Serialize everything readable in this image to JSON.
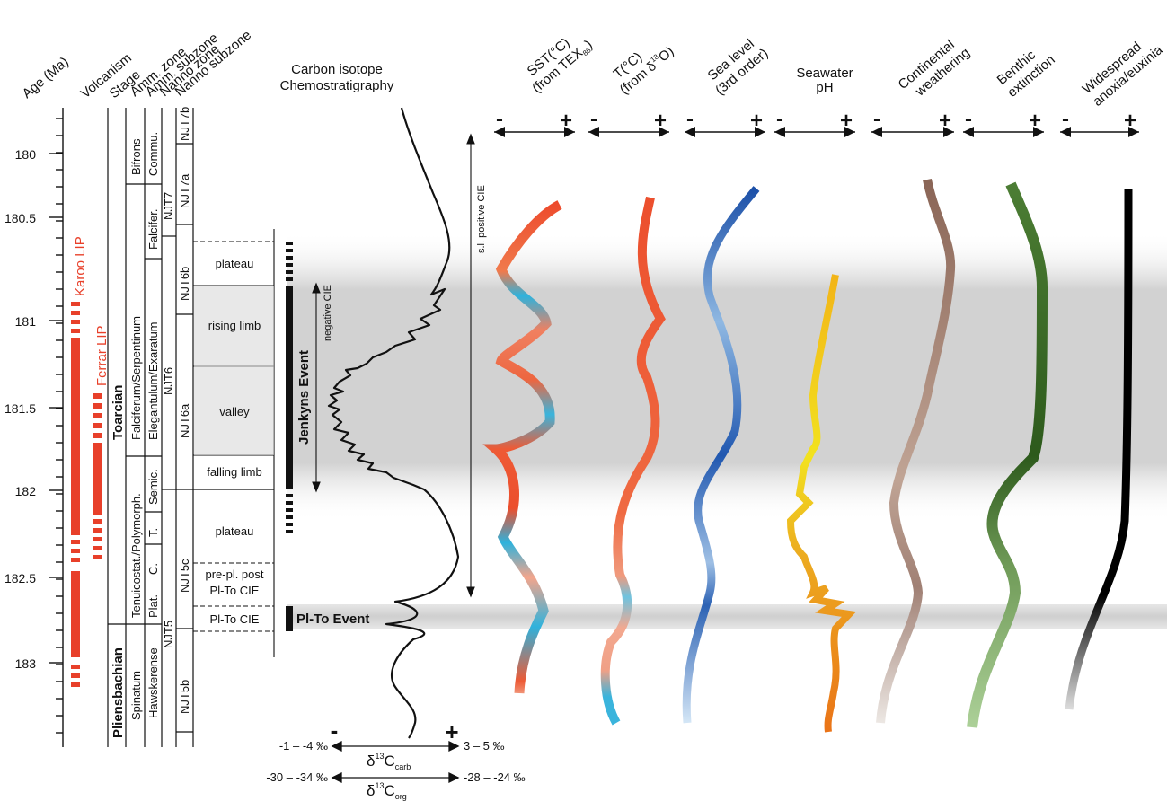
{
  "columns": {
    "age": "Age (Ma)",
    "volcanism": "Volcanism",
    "stage": "Stage",
    "amm_zone": "Amm. zone",
    "amm_subzone": "Amm. subzone",
    "nanno_zone": "Nanno zone",
    "nanno_subzone": "Nanno subzone",
    "carbon_title_1": "Carbon isotope",
    "carbon_title_2": "Chemostratigraphy",
    "sst_1": "SST(°C)",
    "sst_2": "(from TEX",
    "sst_2_sub": "86",
    "sst_2_end": ")",
    "temp_1": "T(°C)",
    "temp_2": "(from δ",
    "temp_2_sup": "18",
    "temp_2_end": "O)",
    "sealevel_1": "Sea level",
    "sealevel_2": "(3rd order)",
    "ph_1": "Seawater",
    "ph_2": "pH",
    "weathering_1": "Continental",
    "weathering_2": "weathering",
    "benthic_1": "Benthic",
    "benthic_2": "extinction",
    "anoxia_1": "Widespread",
    "anoxia_2": "anoxia/euxinia"
  },
  "age_axis": {
    "ticks": [
      "180",
      "180.5",
      "181",
      "181.5",
      "182",
      "182.5",
      "183"
    ]
  },
  "volcanism": {
    "karoo": "Karoo LIP",
    "ferrar": "Ferrar LIP"
  },
  "stages": {
    "toarcian": "Toarcian",
    "pliensbachian": "Pliensbachian"
  },
  "amm_zones": {
    "bifrons": "Bifrons",
    "falciferum": "Falciferum/Serpentinum",
    "tenuicostat": "Tenuicostat./Polymorph.",
    "spinatum": "Spinatum"
  },
  "amm_subzones": {
    "commu": "Commu.",
    "falcifer": "Falcifer.",
    "elegantulum": "Elegantulum/Exaratum",
    "semic": "Semic.",
    "t": "T.",
    "c": "C.",
    "plat": "Plat.",
    "hawskerense": "Hawskerense"
  },
  "nanno_zones": {
    "njt7": "NJT7",
    "njt6": "NJT6",
    "njt5": "NJT5"
  },
  "nanno_subzones": {
    "njt7b": "NJT7b",
    "njt7a": "NJT7a",
    "njt6b": "NJT6b",
    "njt6a": "NJT6a",
    "njt5c": "NJT5c",
    "njt5b": "NJT5b"
  },
  "cie_phases": {
    "plateau_top": "plateau",
    "rising": "rising limb",
    "valley": "valley",
    "falling": "falling limb",
    "plateau_bottom": "plateau",
    "prepl_1": "pre-pl. post",
    "prepl_2": "Pl-To CIE",
    "plto": "Pl-To CIE"
  },
  "events": {
    "jenkyns": "Jenkyns Event",
    "plto": "Pl-To Event"
  },
  "annotations": {
    "negative_cie": "negative CIE",
    "positive_cie": "s.l. positive CIE"
  },
  "isotope_axis": {
    "minus": "-",
    "plus": "+",
    "carb_left": "-1 – -4 ‰",
    "carb_right": "3 – 5 ‰",
    "carb_label": "δ",
    "carb_sup": "13",
    "carb_main": "C",
    "carb_sub": "carb",
    "org_left": "-30 – -34 ‰",
    "org_right": "-28 – -24 ‰",
    "org_label": "δ",
    "org_sup": "13",
    "org_main": "C",
    "org_sub": "org"
  },
  "trend_axis": {
    "minus": "-",
    "plus": "+"
  },
  "colors": {
    "volcanism": "#e8402a",
    "sst_warm": "#e8502e",
    "sst_cool": "#2fb2dc",
    "temp": "#ec5a33",
    "sealevel": "#2158b0",
    "ph_yellow": "#f2d51d",
    "ph_orange": "#ec7f1a",
    "weathering": "#8f6a5c",
    "benthic": "#3a6a25",
    "anoxia": "#000000",
    "band": "#d4d4d4"
  }
}
